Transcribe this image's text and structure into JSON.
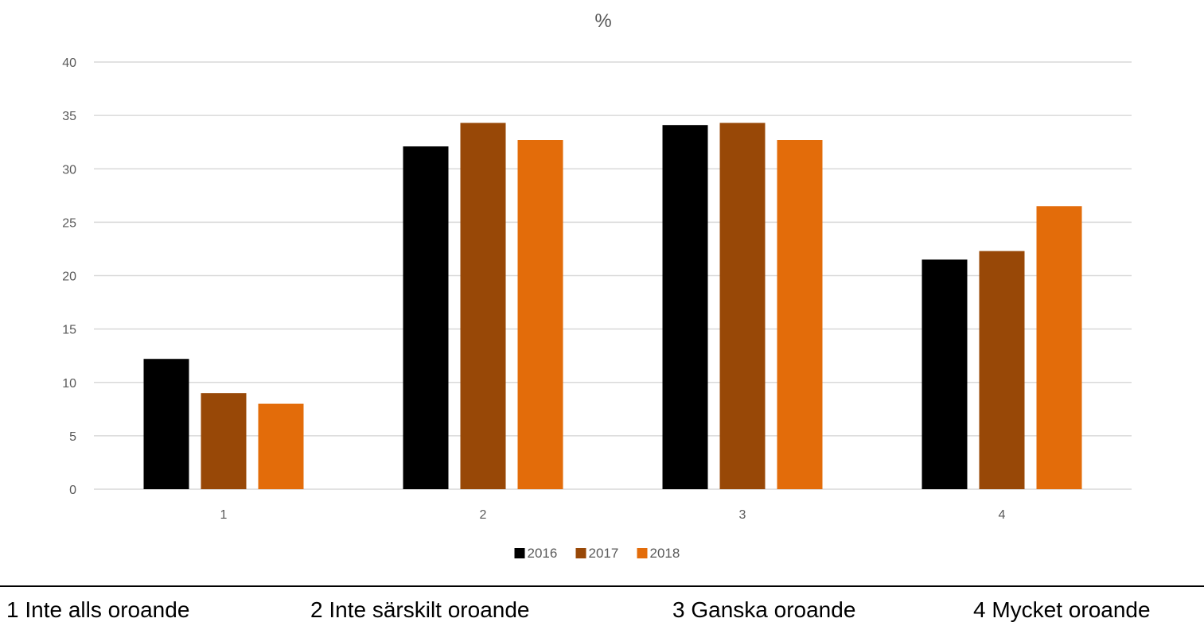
{
  "chart_data": {
    "type": "bar",
    "title": "%",
    "categories": [
      "1",
      "2",
      "3",
      "4"
    ],
    "series": [
      {
        "name": "2016",
        "color": "#000000",
        "values": [
          12.2,
          32.1,
          34.1,
          21.5
        ]
      },
      {
        "name": "2017",
        "color": "#984807",
        "values": [
          9.0,
          34.3,
          34.3,
          22.3
        ]
      },
      {
        "name": "2018",
        "color": "#e36c0a",
        "values": [
          8.0,
          32.7,
          32.7,
          26.5
        ]
      }
    ],
    "ylim": [
      0,
      40
    ],
    "yticks": [
      0,
      5,
      10,
      15,
      20,
      25,
      30,
      35,
      40
    ],
    "grid": true,
    "legend_position": "bottom"
  },
  "category_descriptions": [
    "1 Inte alls oroande",
    "2 Inte särskilt oroande",
    "3 Ganska oroande",
    "4 Mycket oroande"
  ]
}
